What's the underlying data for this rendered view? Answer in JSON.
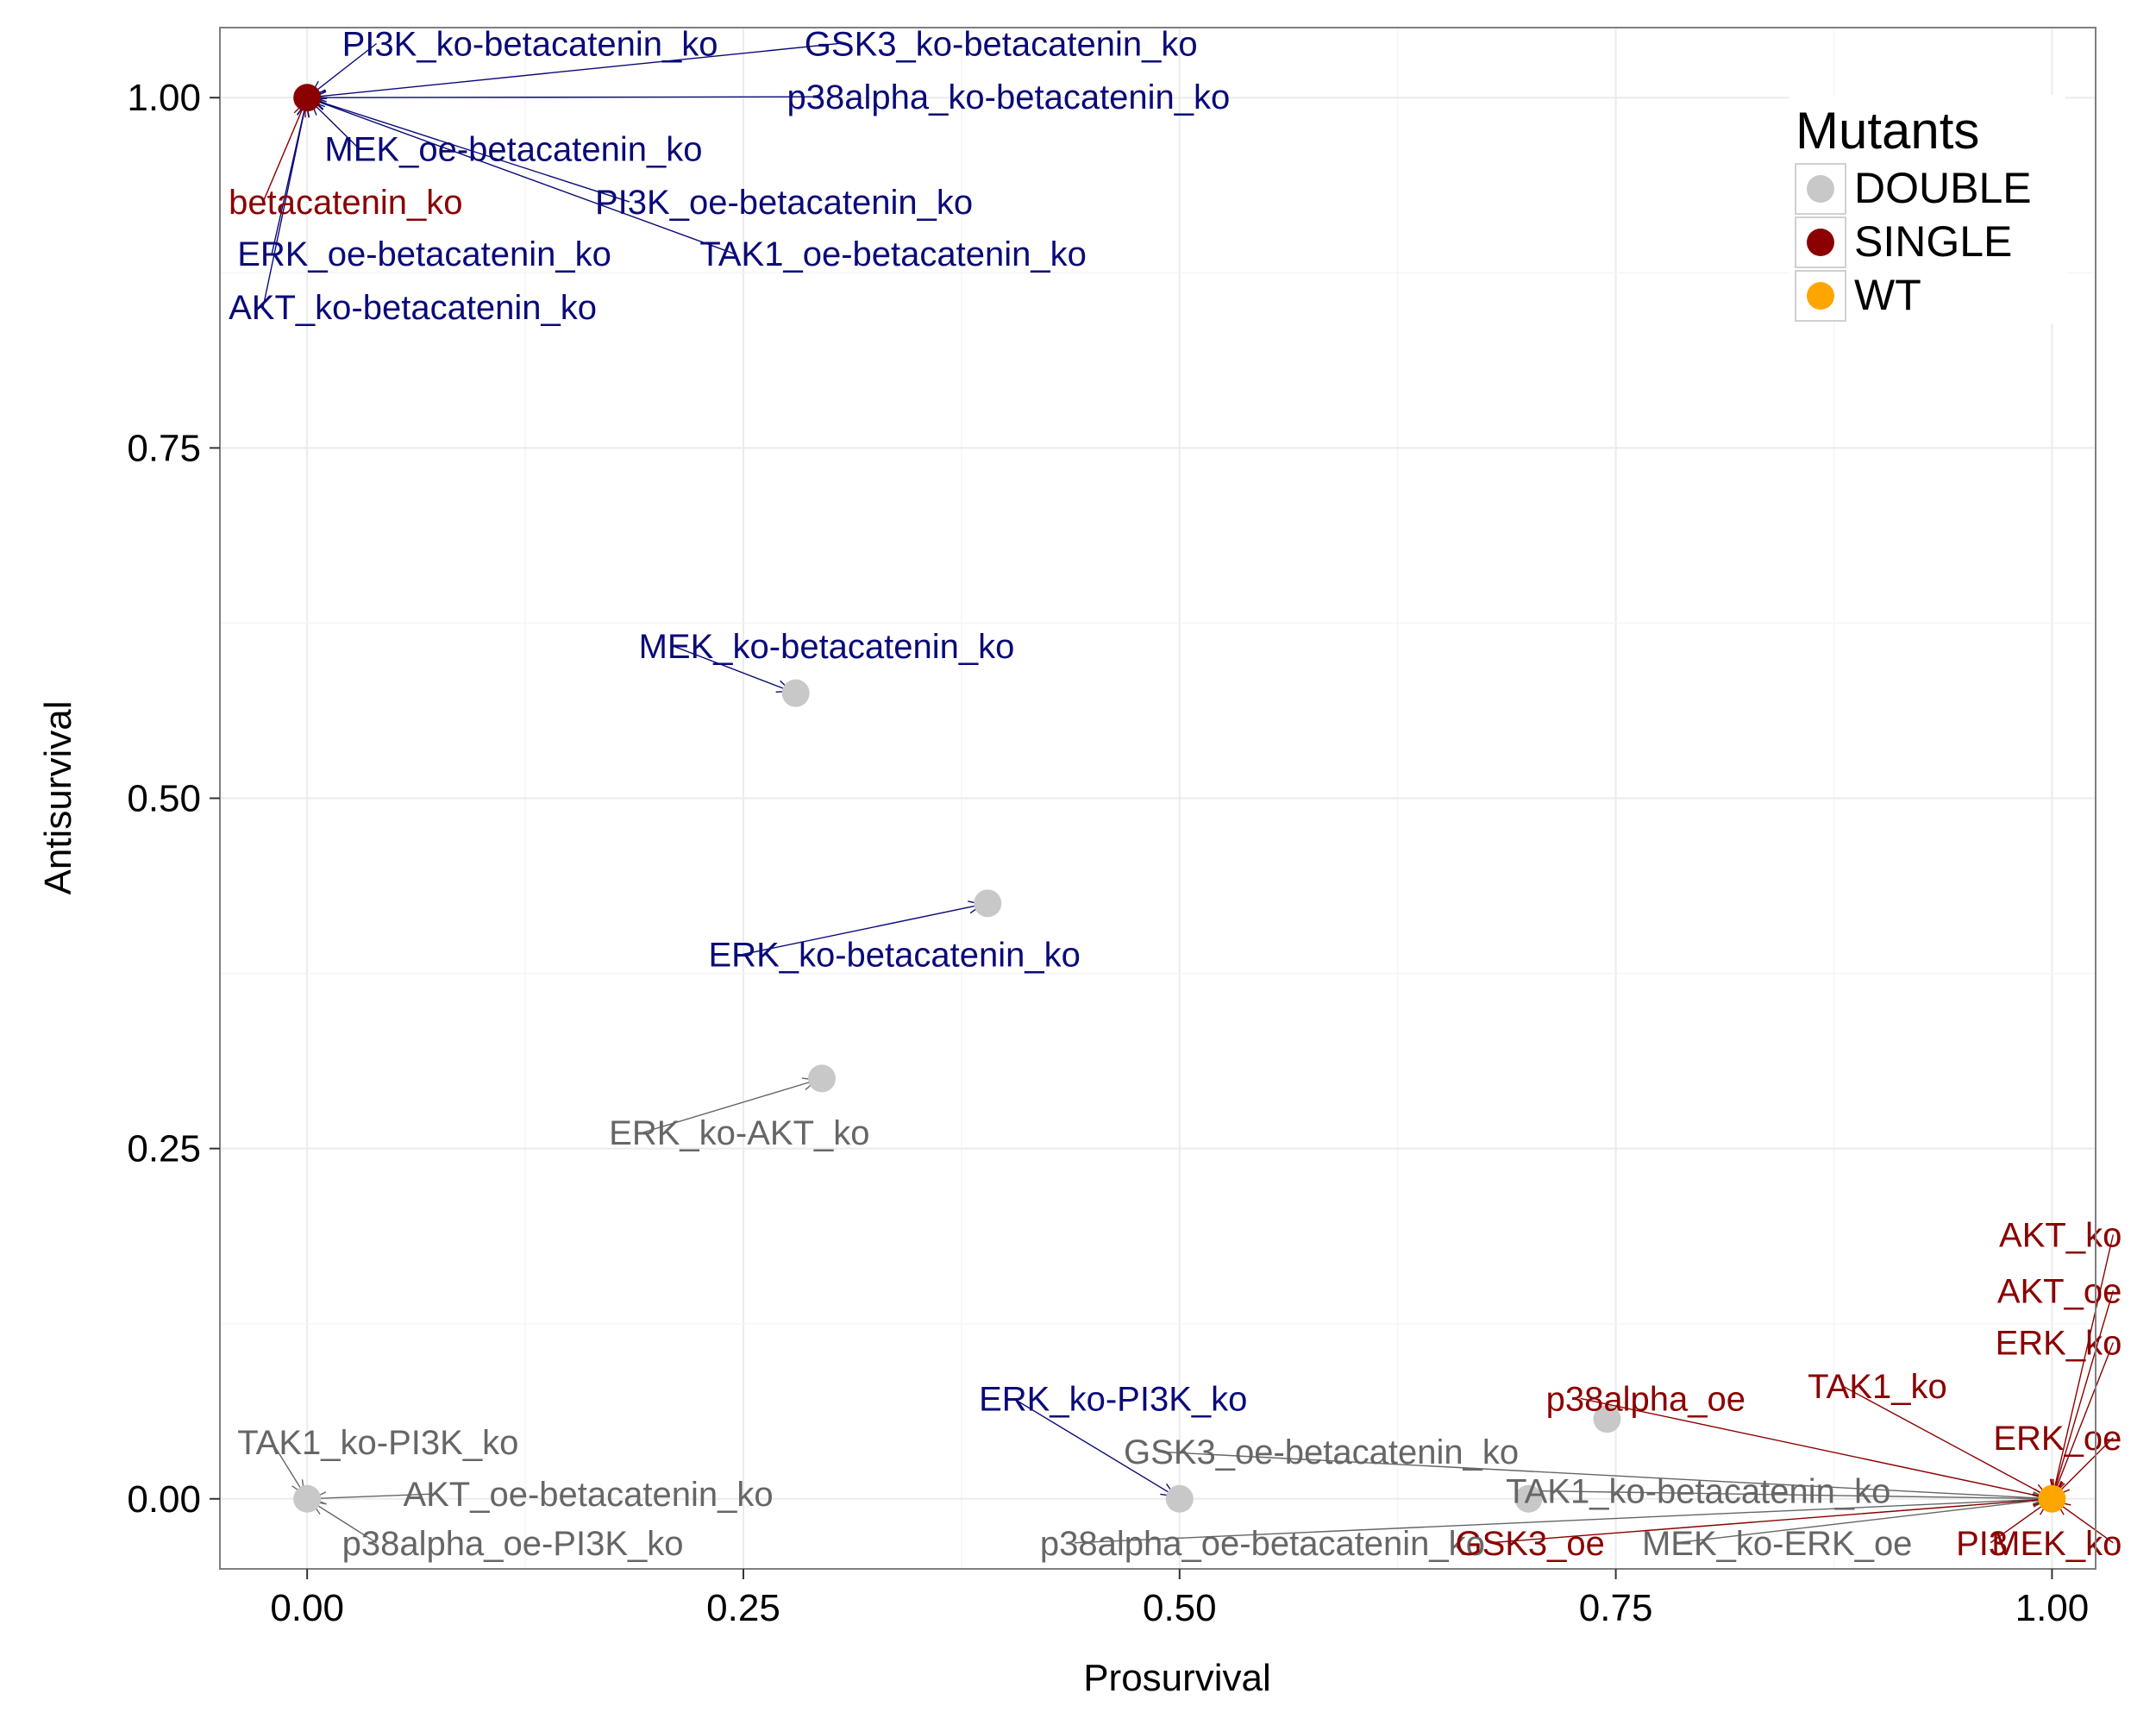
{
  "colors": {
    "double": "#C8C8C8",
    "single": "#8B0000",
    "wt": "#FFA500",
    "label_navy": "#0A0A78",
    "label_grey": "#666666",
    "label_dark": "#8B0000",
    "grid": "#EBEBEB",
    "panel_border": "#7F7F7F"
  },
  "chart_data": {
    "type": "scatter",
    "xlabel": "Prosurvival",
    "ylabel": "Antisurvival",
    "xlim": [
      -0.05,
      1.025
    ],
    "ylim": [
      -0.05,
      1.05
    ],
    "xticks": [
      0.0,
      0.25,
      0.5,
      0.75,
      1.0
    ],
    "xtick_labels": [
      "0.00",
      "0.25",
      "0.50",
      "0.75",
      "1.00"
    ],
    "yticks": [
      0.0,
      0.25,
      0.5,
      0.75,
      1.0
    ],
    "ytick_labels": [
      "0.00",
      "0.25",
      "0.50",
      "0.75",
      "1.00"
    ],
    "grid": true,
    "legend": {
      "title": "Mutants",
      "position": "top-right",
      "entries": [
        {
          "name": "DOUBLE",
          "color_key": "double"
        },
        {
          "name": "SINGLE",
          "color_key": "single"
        },
        {
          "name": "WT",
          "color_key": "wt"
        }
      ]
    },
    "points": [
      {
        "x": 0.0,
        "y": 1.0,
        "group": "SINGLE"
      },
      {
        "x": 0.28,
        "y": 0.575,
        "group": "DOUBLE"
      },
      {
        "x": 0.39,
        "y": 0.425,
        "group": "DOUBLE"
      },
      {
        "x": 0.295,
        "y": 0.3,
        "group": "DOUBLE"
      },
      {
        "x": 0.0,
        "y": 0.0,
        "group": "DOUBLE"
      },
      {
        "x": 0.5,
        "y": 0.0,
        "group": "DOUBLE"
      },
      {
        "x": 0.7,
        "y": 0.0,
        "group": "DOUBLE"
      },
      {
        "x": 0.745,
        "y": 0.057,
        "group": "DOUBLE"
      },
      {
        "x": 1.0,
        "y": 0.0,
        "group": "WT"
      }
    ],
    "annotations": [
      {
        "text": "PI3K_ko-betacatenin_ko",
        "color_key": "label_navy",
        "x": 0.02,
        "y": 1.03,
        "anchor": "start",
        "tx": 0.0,
        "ty": 1.0
      },
      {
        "text": "GSK3_ko-betacatenin_ko",
        "color_key": "label_navy",
        "x": 0.285,
        "y": 1.03,
        "anchor": "start",
        "tx": 0.0,
        "ty": 1.0
      },
      {
        "text": "p38alpha_ko-betacatenin_ko",
        "color_key": "label_navy",
        "x": 0.275,
        "y": 0.992,
        "anchor": "start",
        "tx": 0.0,
        "ty": 1.0
      },
      {
        "text": "MEK_oe-betacatenin_ko",
        "color_key": "label_navy",
        "x": 0.01,
        "y": 0.955,
        "anchor": "start",
        "tx": 0.0,
        "ty": 1.0
      },
      {
        "text": "betacatenin_ko",
        "color_key": "label_dark",
        "x": -0.045,
        "y": 0.917,
        "anchor": "start",
        "tx": 0.0,
        "ty": 1.0
      },
      {
        "text": "PI3K_oe-betacatenin_ko",
        "color_key": "label_navy",
        "x": 0.165,
        "y": 0.917,
        "anchor": "start",
        "tx": 0.0,
        "ty": 1.0
      },
      {
        "text": "ERK_oe-betacatenin_ko",
        "color_key": "label_navy",
        "x": -0.04,
        "y": 0.88,
        "anchor": "start",
        "tx": 0.0,
        "ty": 1.0
      },
      {
        "text": "TAK1_oe-betacatenin_ko",
        "color_key": "label_navy",
        "x": 0.225,
        "y": 0.88,
        "anchor": "start",
        "tx": 0.0,
        "ty": 1.0
      },
      {
        "text": "AKT_ko-betacatenin_ko",
        "color_key": "label_navy",
        "x": -0.045,
        "y": 0.842,
        "anchor": "start",
        "tx": 0.0,
        "ty": 1.0
      },
      {
        "text": "MEK_ko-betacatenin_ko",
        "color_key": "label_navy",
        "x": 0.19,
        "y": 0.6,
        "anchor": "start",
        "tx": 0.28,
        "ty": 0.575
      },
      {
        "text": "ERK_ko-betacatenin_ko",
        "color_key": "label_navy",
        "x": 0.23,
        "y": 0.38,
        "anchor": "start",
        "tx": 0.39,
        "ty": 0.425
      },
      {
        "text": "ERK_ko-AKT_ko",
        "color_key": "label_grey",
        "x": 0.173,
        "y": 0.253,
        "anchor": "start",
        "tx": 0.295,
        "ty": 0.3
      },
      {
        "text": "TAK1_ko-PI3K_ko",
        "color_key": "label_grey",
        "x": -0.04,
        "y": 0.032,
        "anchor": "start",
        "tx": 0.0,
        "ty": 0.0
      },
      {
        "text": "AKT_oe-betacatenin_ko",
        "color_key": "label_grey",
        "x": 0.055,
        "y": -0.005,
        "anchor": "start",
        "tx": 0.0,
        "ty": 0.0
      },
      {
        "text": "p38alpha_oe-PI3K_ko",
        "color_key": "label_grey",
        "x": 0.02,
        "y": -0.04,
        "anchor": "start",
        "tx": 0.0,
        "ty": 0.0
      },
      {
        "text": "ERK_ko-PI3K_ko",
        "color_key": "label_navy",
        "x": 0.385,
        "y": 0.063,
        "anchor": "start",
        "tx": 0.5,
        "ty": 0.0
      },
      {
        "text": "GSK3_oe-betacatenin_ko",
        "color_key": "label_grey",
        "x": 0.468,
        "y": 0.025,
        "anchor": "start",
        "tx": 1.0,
        "ty": 0.0
      },
      {
        "text": "p38alpha_oe-betacatenin_ko",
        "color_key": "label_grey",
        "x": 0.42,
        "y": -0.04,
        "anchor": "start",
        "tx": 1.0,
        "ty": 0.0
      },
      {
        "text": "TAK1_ko-betacatenin_ko",
        "color_key": "label_grey",
        "x": 0.687,
        "y": -0.003,
        "anchor": "start",
        "tx": 1.0,
        "ty": 0.0
      },
      {
        "text": "GSK3_oe",
        "color_key": "label_dark",
        "x": 0.658,
        "y": -0.04,
        "anchor": "start",
        "tx": 1.0,
        "ty": 0.0
      },
      {
        "text": "MEK_ko-ERK_oe",
        "color_key": "label_grey",
        "x": 0.765,
        "y": -0.04,
        "anchor": "start",
        "tx": 1.0,
        "ty": 0.0
      },
      {
        "text": "PI3",
        "color_key": "label_dark",
        "x": 0.945,
        "y": -0.04,
        "anchor": "start",
        "tx": 1.0,
        "ty": 0.0
      },
      {
        "text": "MEK_ko",
        "color_key": "label_dark",
        "x": 1.04,
        "y": -0.04,
        "anchor": "end",
        "tx": 1.0,
        "ty": 0.0
      },
      {
        "text": "p38alpha_oe",
        "color_key": "label_dark",
        "x": 0.71,
        "y": 0.063,
        "anchor": "start",
        "tx": 1.0,
        "ty": 0.0
      },
      {
        "text": "TAK1_ko",
        "color_key": "label_dark",
        "x": 0.86,
        "y": 0.072,
        "anchor": "start",
        "tx": 1.0,
        "ty": 0.0
      },
      {
        "text": "ERK_oe",
        "color_key": "label_dark",
        "x": 1.04,
        "y": 0.035,
        "anchor": "end",
        "tx": 1.0,
        "ty": 0.0
      },
      {
        "text": "ERK_ko",
        "color_key": "label_dark",
        "x": 1.04,
        "y": 0.103,
        "anchor": "end",
        "tx": 1.0,
        "ty": 0.0
      },
      {
        "text": "AKT_oe",
        "color_key": "label_dark",
        "x": 1.04,
        "y": 0.14,
        "anchor": "end",
        "tx": 1.0,
        "ty": 0.0
      },
      {
        "text": "AKT_ko",
        "color_key": "label_dark",
        "x": 1.04,
        "y": 0.18,
        "anchor": "end",
        "tx": 1.0,
        "ty": 0.0
      }
    ]
  }
}
